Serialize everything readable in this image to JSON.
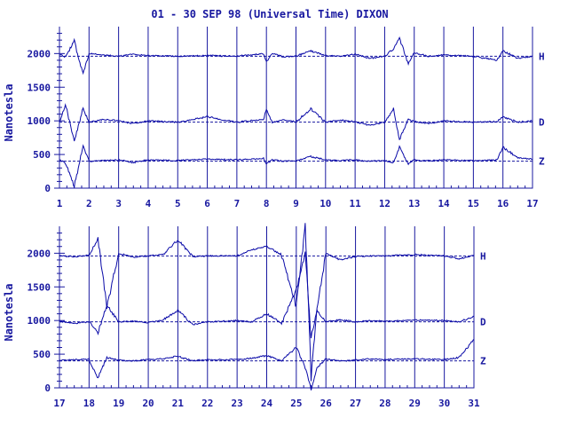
{
  "colors": {
    "ink": "#1818a0",
    "trace": "#0a0aa8",
    "background": "#ffffff"
  },
  "chart_data": {
    "type": "line",
    "title": "01 - 30 SEP 98 (Universal Time) DIXON",
    "ylabel": "Nanotesla",
    "ylim": [
      0,
      2400
    ],
    "yticks": [
      0,
      500,
      1000,
      1500,
      2000
    ],
    "grid": "vertical day lines",
    "series_names": [
      "H",
      "D",
      "Z"
    ],
    "baselines": {
      "H": 1960,
      "D": 980,
      "Z": 400
    },
    "panels": [
      {
        "xlim": [
          1,
          17
        ],
        "xtick_labels": [
          "1",
          "2",
          "3",
          "4",
          "5",
          "6",
          "7",
          "8",
          "9",
          "10",
          "11",
          "12",
          "13",
          "14",
          "15",
          "16",
          "17"
        ],
        "series": [
          {
            "name": "H",
            "x": [
              1,
              1.2,
              1.5,
              1.8,
              2,
              2.5,
              3,
              3.5,
              4,
              5,
              6,
              7,
              7.9,
              8,
              8.2,
              8.6,
              9,
              9.5,
              10,
              10.5,
              11,
              11.5,
              12,
              12.3,
              12.5,
              12.8,
              13,
              13.5,
              14,
              15,
              15.8,
              16,
              16.5,
              17
            ],
            "y": [
              1990,
              1950,
              2180,
              1700,
              2000,
              1980,
              1960,
              1990,
              1970,
              1960,
              1970,
              1960,
              2000,
              1880,
              2000,
              1950,
              1960,
              2040,
              1970,
              1960,
              1990,
              1930,
              1960,
              2070,
              2230,
              1850,
              2010,
              1960,
              1980,
              1960,
              1900,
              2040,
              1930,
              1960
            ]
          },
          {
            "name": "D",
            "x": [
              1,
              1.2,
              1.5,
              1.8,
              2,
              2.5,
              3,
              3.5,
              4,
              5,
              6,
              7,
              7.9,
              8,
              8.2,
              8.6,
              9,
              9.5,
              10,
              10.5,
              11,
              11.5,
              12,
              12.3,
              12.5,
              12.8,
              13,
              13.5,
              14,
              15,
              15.8,
              16,
              16.5,
              17
            ],
            "y": [
              960,
              1250,
              700,
              1180,
              980,
              1020,
              1000,
              960,
              1000,
              980,
              1060,
              980,
              1020,
              1180,
              970,
              1020,
              980,
              1180,
              980,
              1010,
              990,
              930,
              980,
              1170,
              720,
              1020,
              990,
              960,
              1000,
              980,
              990,
              1060,
              980,
              1000
            ]
          },
          {
            "name": "Z",
            "x": [
              1,
              1.2,
              1.5,
              1.8,
              2,
              2.5,
              3,
              3.5,
              4,
              5,
              6,
              7,
              7.9,
              8,
              8.2,
              8.6,
              9,
              9.5,
              10,
              10.5,
              11,
              11.5,
              12,
              12.3,
              12.5,
              12.8,
              13,
              13.5,
              14,
              15,
              15.8,
              16,
              16.5,
              17
            ],
            "y": [
              420,
              380,
              30,
              620,
              400,
              410,
              420,
              380,
              420,
              410,
              430,
              420,
              440,
              360,
              420,
              400,
              410,
              470,
              420,
              410,
              420,
              400,
              410,
              380,
              610,
              360,
              420,
              410,
              420,
              410,
              420,
              610,
              450,
              430
            ]
          }
        ]
      },
      {
        "xlim": [
          17,
          31
        ],
        "xtick_labels": [
          "17",
          "18",
          "19",
          "20",
          "21",
          "22",
          "23",
          "24",
          "25",
          "26",
          "27",
          "28",
          "29",
          "30",
          "31"
        ],
        "series": [
          {
            "name": "H",
            "x": [
              17,
              17.5,
              18,
              18.3,
              18.6,
              19,
              19.5,
              20,
              20.5,
              21,
              21.5,
              22,
              23,
              23.5,
              24,
              24.5,
              25,
              25.3,
              25.5,
              25.7,
              26,
              26.5,
              27,
              27.5,
              28,
              29,
              30,
              30.5,
              31
            ],
            "y": [
              1960,
              1950,
              1970,
              2220,
              1200,
              2000,
              1940,
              1960,
              1980,
              2200,
              1950,
              1960,
              1960,
              2050,
              2100,
              1980,
              1200,
              2380,
              150,
              1200,
              2000,
              1900,
              1950,
              1960,
              1960,
              1980,
              1960,
              1920,
              1970
            ]
          },
          {
            "name": "D",
            "x": [
              17,
              17.5,
              18,
              18.3,
              18.6,
              19,
              19.5,
              20,
              20.5,
              21,
              21.5,
              22,
              23,
              23.5,
              24,
              24.5,
              25,
              25.3,
              25.5,
              25.7,
              26,
              26.5,
              27,
              27.5,
              28,
              29,
              30,
              30.5,
              31
            ],
            "y": [
              990,
              960,
              980,
              820,
              1230,
              980,
              990,
              970,
              1010,
              1150,
              940,
              980,
              1000,
              980,
              1100,
              960,
              1450,
              2000,
              750,
              1150,
              980,
              1010,
              980,
              1000,
              990,
              1010,
              1000,
              980,
              1060
            ]
          },
          {
            "name": "Z",
            "x": [
              17,
              17.5,
              18,
              18.3,
              18.6,
              19,
              19.5,
              20,
              20.5,
              21,
              21.5,
              22,
              23,
              23.5,
              24,
              24.5,
              25,
              25.3,
              25.5,
              25.7,
              26,
              26.5,
              27,
              27.5,
              28,
              29,
              30,
              30.5,
              31
            ],
            "y": [
              410,
              420,
              420,
              150,
              450,
              410,
              400,
              420,
              430,
              470,
              400,
              420,
              420,
              440,
              480,
              400,
              600,
              300,
              -20,
              300,
              430,
              400,
              410,
              430,
              420,
              430,
              420,
              450,
              720
            ]
          }
        ]
      }
    ]
  }
}
